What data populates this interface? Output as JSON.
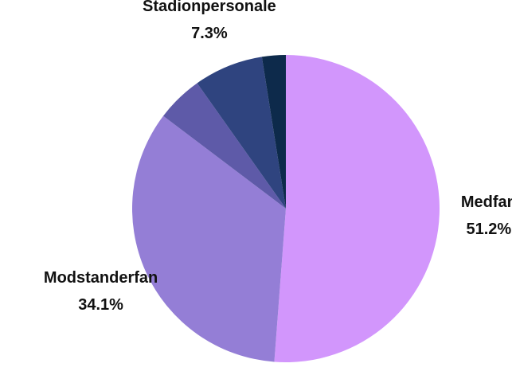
{
  "chart_data": {
    "type": "pie",
    "categories": [
      "Medfan",
      "Modstanderfan",
      null,
      "Stadionpersonale",
      null
    ],
    "values": [
      51.2,
      34.1,
      4.9,
      7.3,
      2.5
    ],
    "value_labels": [
      "51.2%",
      "34.1%",
      null,
      "7.3%",
      null
    ],
    "colors": [
      "#d296fc",
      "#947ed6",
      "#5e5aa8",
      "#2f447f",
      "#0d2a4b"
    ]
  }
}
